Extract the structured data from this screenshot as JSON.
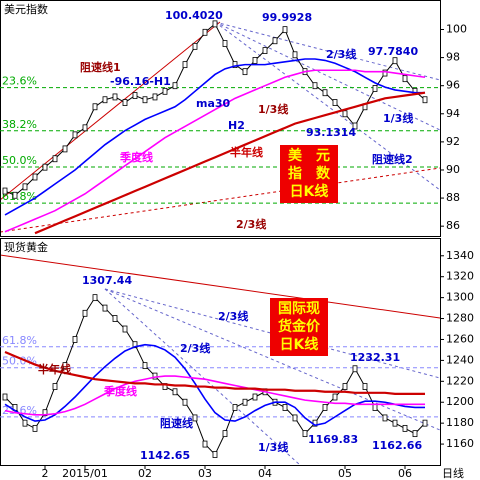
{
  "chart_data": [
    {
      "type": "line",
      "title": "美元指数",
      "ylim": [
        85.3,
        102.1
      ],
      "yticks": [
        86,
        88,
        90,
        92,
        94,
        96,
        98,
        100
      ],
      "series": [
        {
          "name": "K",
          "color": "#000000",
          "values": [
            88.5,
            88.2,
            88.8,
            89.5,
            90.2,
            90.8,
            91.5,
            92.5,
            93.0,
            94.5,
            95.0,
            95.2,
            94.8,
            95.3,
            95.0,
            95.2,
            95.6,
            96.0,
            97.5,
            98.8,
            99.8,
            100.4,
            99.0,
            97.5,
            97.0,
            97.8,
            98.5,
            99.2,
            99.99,
            98.2,
            97.0,
            96.0,
            95.5,
            94.8,
            94.0,
            93.13,
            94.5,
            95.8,
            96.9,
            97.78,
            96.5,
            95.6,
            95.0
          ]
        },
        {
          "name": "ma30",
          "color": "#0000ff",
          "values": [
            86.8,
            87.2,
            87.6,
            88.0,
            88.5,
            89.0,
            89.5,
            90.0,
            90.6,
            91.2,
            91.8,
            92.3,
            92.8,
            93.2,
            93.6,
            93.9,
            94.2,
            94.5,
            95.0,
            95.6,
            96.2,
            96.8,
            97.2,
            97.4,
            97.5,
            97.5,
            97.5,
            97.6,
            97.7,
            97.8,
            97.9,
            97.9,
            97.8,
            97.6,
            97.3,
            97.0,
            96.6,
            96.2,
            95.9,
            95.7,
            95.6,
            95.5,
            95.5
          ]
        },
        {
          "name": "季度线",
          "color": "#ff00ff",
          "values": [
            85.6,
            85.9,
            86.2,
            86.5,
            86.8,
            87.1,
            87.5,
            87.9,
            88.3,
            88.8,
            89.3,
            89.8,
            90.3,
            90.8,
            91.3,
            91.8,
            92.3,
            92.7,
            93.1,
            93.5,
            93.9,
            94.3,
            94.7,
            95.1,
            95.4,
            95.7,
            96.0,
            96.3,
            96.6,
            96.8,
            97.0,
            97.1,
            97.1,
            97.1,
            97.1,
            97.1,
            97.0,
            97.0,
            97.0,
            96.9,
            96.8,
            96.7,
            96.6
          ]
        },
        {
          "name": "半年线",
          "color": "#cc0000",
          "values": [
            null,
            null,
            null,
            85.5,
            85.8,
            86.1,
            86.4,
            86.7,
            87.0,
            87.3,
            87.6,
            87.9,
            88.2,
            88.5,
            88.8,
            89.1,
            89.4,
            89.7,
            90.0,
            90.3,
            90.6,
            90.9,
            91.2,
            91.5,
            91.8,
            92.1,
            92.4,
            92.7,
            93.0,
            93.3,
            93.5,
            93.7,
            93.9,
            94.1,
            94.3,
            94.5,
            94.7,
            94.9,
            95.1,
            95.2,
            95.3,
            95.4,
            95.5
          ]
        }
      ],
      "levels": [
        {
          "label": "23.6%",
          "value": 95.86,
          "color": "#00aa00"
        },
        {
          "label": "38.2%",
          "value": 92.79,
          "color": "#00aa00"
        },
        {
          "label": "50.0%",
          "value": 90.21,
          "color": "#00aa00"
        },
        {
          "label": "61.8%",
          "value": 87.64,
          "color": "#00aa00"
        }
      ],
      "annotations": [
        "100.4020",
        "99.9928",
        "97.7840",
        "93.1314",
        "-96.16-H1",
        "H2",
        "ma30",
        "阻速线1",
        "2/3线",
        "1/3线",
        "1/3线",
        "阻速线2",
        "半年线",
        "季度线",
        "2/3线"
      ],
      "box": [
        "美　元",
        "指　数",
        "日K线"
      ]
    },
    {
      "type": "line",
      "title": "现货黄金",
      "ylim": [
        1140,
        1357
      ],
      "yticks": [
        1160,
        1180,
        1200,
        1220,
        1240,
        1260,
        1280,
        1300,
        1320,
        1340
      ],
      "categories": [
        null,
        null,
        null,
        null,
        "2",
        null,
        null,
        null,
        "2015/01",
        null,
        null,
        null,
        null,
        null,
        "02",
        null,
        null,
        null,
        null,
        null,
        "03",
        null,
        null,
        null,
        null,
        null,
        "04",
        null,
        null,
        null,
        null,
        null,
        null,
        null,
        "05",
        null,
        null,
        null,
        null,
        null,
        "06",
        null,
        null
      ],
      "x_label": "日线",
      "series": [
        {
          "name": "K",
          "color": "#000000",
          "values": [
            1205,
            1195,
            1180,
            1175,
            1190,
            1215,
            1235,
            1260,
            1285,
            1300,
            1290,
            1280,
            1270,
            1255,
            1235,
            1225,
            1215,
            1210,
            1200,
            1185,
            1160,
            1150,
            1170,
            1195,
            1200,
            1205,
            1210,
            1200,
            1195,
            1185,
            1170,
            1180,
            1195,
            1205,
            1215,
            1232,
            1215,
            1195,
            1185,
            1180,
            1175,
            1170,
            1180
          ]
        },
        {
          "name": "ma30",
          "color": "#0000ff",
          "values": [
            1198,
            1192,
            1186,
            1182,
            1183,
            1188,
            1196,
            1205,
            1215,
            1225,
            1234,
            1242,
            1249,
            1253,
            1255,
            1254,
            1250,
            1243,
            1232,
            1218,
            1203,
            1190,
            1183,
            1182,
            1186,
            1192,
            1197,
            1200,
            1200,
            1195,
            1185,
            1178,
            1180,
            1186,
            1192,
            1198,
            1201,
            1201,
            1200,
            1198,
            1196,
            1195,
            1195
          ]
        },
        {
          "name": "季度线",
          "color": "#ff00ff",
          "values": [
            1192,
            1190,
            1189,
            1188,
            1188,
            1189,
            1191,
            1194,
            1198,
            1203,
            1208,
            1213,
            1217,
            1220,
            1222,
            1224,
            1225,
            1225,
            1224,
            1223,
            1222,
            1220,
            1218,
            1216,
            1214,
            1212,
            1210,
            1208,
            1206,
            1204,
            1202,
            1201,
            1200,
            1199,
            1199,
            1198,
            1198,
            1198,
            1198,
            1198,
            1198,
            1198,
            1198
          ]
        },
        {
          "name": "半年线",
          "color": "#cc0000",
          "values": [
            1248,
            1244,
            1240,
            1236,
            1233,
            1230,
            1228,
            1226,
            1224,
            1222,
            1221,
            1220,
            1219,
            1218,
            1218,
            1217,
            1217,
            1216,
            1216,
            1215,
            1215,
            1214,
            1214,
            1213,
            1213,
            1213,
            1212,
            1212,
            1212,
            1211,
            1211,
            1211,
            1210,
            1210,
            1210,
            1209,
            1209,
            1209,
            1209,
            1208,
            1208,
            1208,
            1208
          ]
        }
      ],
      "levels": [
        {
          "label": "61.8%",
          "value": 1253,
          "color": "#8888ff"
        },
        {
          "label": "50.0%",
          "value": 1233,
          "color": "#8888ff"
        },
        {
          "label": "23.6%",
          "value": 1186,
          "color": "#8888ff"
        }
      ],
      "annotations": [
        "1307.44",
        "1232.31",
        "1169.83",
        "1162.66",
        "1142.65",
        "2/3线",
        "2/3线",
        "1/3线",
        "半年线",
        "季度线",
        "阻速线"
      ],
      "box": [
        "国际现",
        "货金价",
        "日K线"
      ]
    }
  ]
}
